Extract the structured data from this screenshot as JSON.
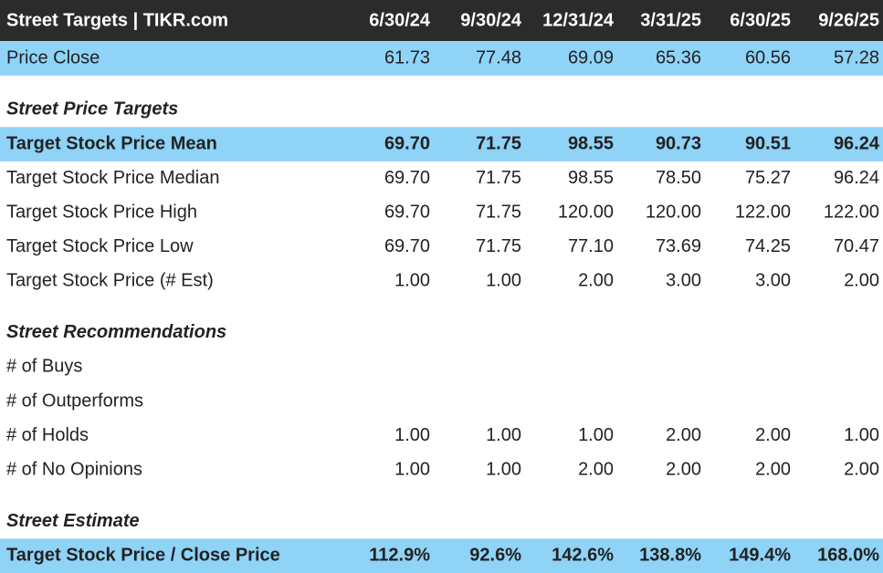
{
  "header": {
    "title": "Street Targets | TIKR.com",
    "columns": [
      "6/30/24",
      "9/30/24",
      "12/31/24",
      "3/31/25",
      "6/30/25",
      "9/26/25"
    ]
  },
  "price_close": {
    "label": "Price Close",
    "values": [
      "61.73",
      "77.48",
      "69.09",
      "65.36",
      "60.56",
      "57.28"
    ]
  },
  "sections": [
    {
      "title": "Street Price Targets",
      "rows": [
        {
          "label": "Target Stock Price Mean",
          "values": [
            "69.70",
            "71.75",
            "98.55",
            "90.73",
            "90.51",
            "96.24"
          ]
        },
        {
          "label": "Target Stock Price Median",
          "values": [
            "69.70",
            "71.75",
            "98.55",
            "78.50",
            "75.27",
            "96.24"
          ]
        },
        {
          "label": "Target Stock Price High",
          "values": [
            "69.70",
            "71.75",
            "120.00",
            "120.00",
            "122.00",
            "122.00"
          ]
        },
        {
          "label": "Target Stock Price Low",
          "values": [
            "69.70",
            "71.75",
            "77.10",
            "73.69",
            "74.25",
            "70.47"
          ]
        },
        {
          "label": "Target Stock Price (# Est)",
          "values": [
            "1.00",
            "1.00",
            "2.00",
            "3.00",
            "3.00",
            "2.00"
          ]
        }
      ]
    },
    {
      "title": "Street Recommendations",
      "rows": [
        {
          "label": "# of Buys",
          "values": []
        },
        {
          "label": "# of Outperforms",
          "values": []
        },
        {
          "label": "# of Holds",
          "values": [
            "1.00",
            "1.00",
            "1.00",
            "2.00",
            "2.00",
            "1.00"
          ]
        },
        {
          "label": "# of No Opinions",
          "values": [
            "1.00",
            "1.00",
            "2.00",
            "2.00",
            "2.00",
            "2.00"
          ]
        }
      ]
    },
    {
      "title": "Street Estimate",
      "rows": [
        {
          "label": "Target Stock Price / Close Price",
          "values": [
            "112.9%",
            "92.6%",
            "142.6%",
            "138.8%",
            "149.4%",
            "168.0%"
          ]
        }
      ]
    }
  ]
}
